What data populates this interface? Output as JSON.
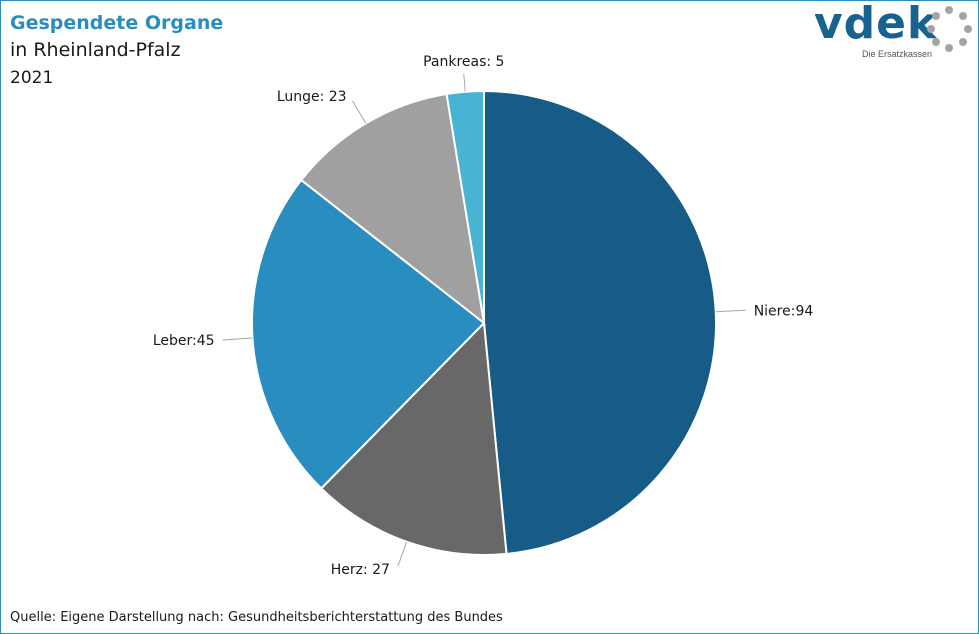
{
  "header": {
    "title": "Gespendete Organe",
    "subtitle": "in Rheinland-Pfalz",
    "year": "2021"
  },
  "logo": {
    "wordmark": "vdek",
    "tagline": "Die Ersatzkassen"
  },
  "source": "Quelle: Eigene Darstellung nach:  Gesundheitsberichterstattung  des Bundes",
  "chart_data": {
    "type": "pie",
    "title": "Gespendete Organe in Rheinland-Pfalz 2021",
    "start": "12 o'clock, clockwise",
    "slices": [
      {
        "name": "Niere",
        "value": 94,
        "label": "Niere:94",
        "color": "#175c87"
      },
      {
        "name": "Herz",
        "value": 27,
        "label": "Herz: 27",
        "color": "#686868"
      },
      {
        "name": "Leber",
        "value": 45,
        "label": "Leber:45",
        "color": "#2a8dbf"
      },
      {
        "name": "Lunge",
        "value": 23,
        "label": "Lunge: 23",
        "color": "#a0a0a0"
      },
      {
        "name": "Pankreas",
        "value": 5,
        "label": "Pankreas: 5",
        "color": "#46b4d2"
      }
    ]
  }
}
